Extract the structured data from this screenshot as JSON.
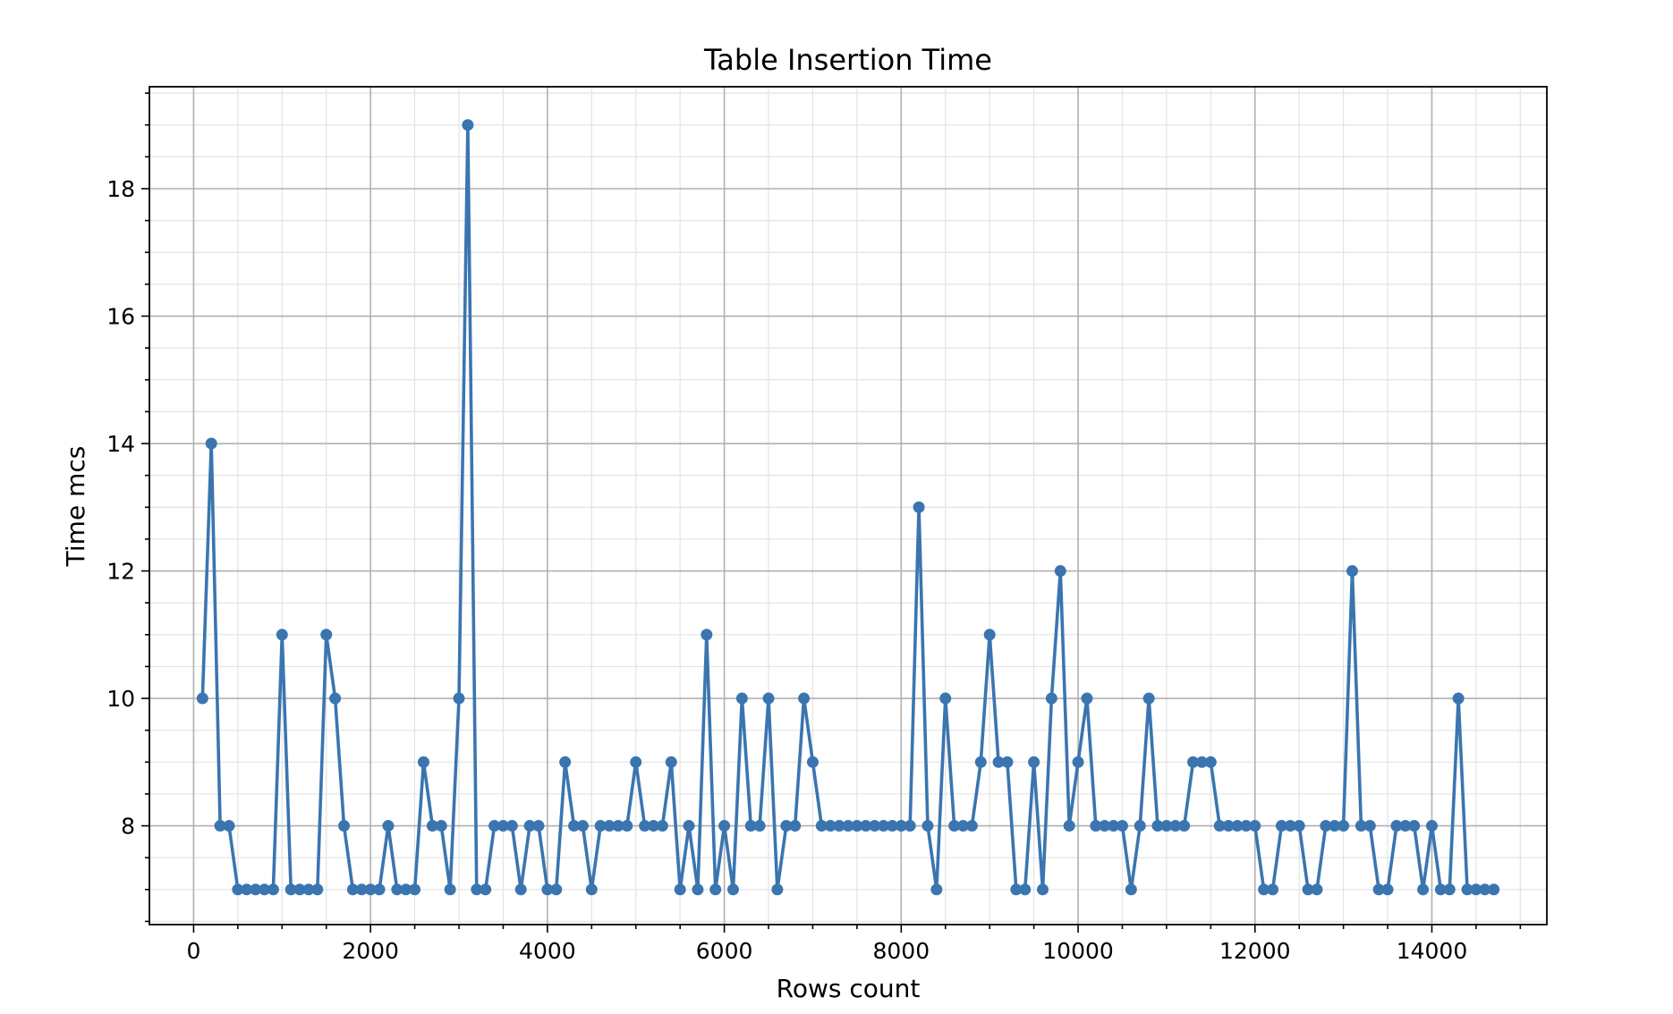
{
  "chart_data": {
    "type": "line",
    "title": "Table Insertion Time",
    "xlabel": "Rows count",
    "ylabel": "Time mcs",
    "xlim": [
      -500,
      15300
    ],
    "ylim": [
      6.45,
      19.6
    ],
    "x_ticks": [
      0,
      2000,
      4000,
      6000,
      8000,
      10000,
      12000,
      14000
    ],
    "y_ticks": [
      8,
      10,
      12,
      14,
      16,
      18
    ],
    "grid": true,
    "minor_grid": true,
    "marker": "circle",
    "color": "#3a75b0",
    "series": [
      {
        "name": "",
        "x": [
          100,
          200,
          300,
          400,
          500,
          600,
          700,
          800,
          900,
          1000,
          1100,
          1200,
          1300,
          1400,
          1500,
          1600,
          1700,
          1800,
          1900,
          2000,
          2100,
          2200,
          2300,
          2400,
          2500,
          2600,
          2700,
          2800,
          2900,
          3000,
          3100,
          3200,
          3300,
          3400,
          3500,
          3600,
          3700,
          3800,
          3900,
          4000,
          4100,
          4200,
          4300,
          4400,
          4500,
          4600,
          4700,
          4800,
          4900,
          5000,
          5100,
          5200,
          5300,
          5400,
          5500,
          5600,
          5700,
          5800,
          5900,
          6000,
          6100,
          6200,
          6300,
          6400,
          6500,
          6600,
          6700,
          6800,
          6900,
          7000,
          7100,
          7200,
          7300,
          7400,
          7500,
          7600,
          7700,
          7800,
          7900,
          8000,
          8100,
          8200,
          8300,
          8400,
          8500,
          8600,
          8700,
          8800,
          8900,
          9000,
          9100,
          9200,
          9300,
          9400,
          9500,
          9600,
          9700,
          9800,
          9900,
          10000,
          10100,
          10200,
          10300,
          10400,
          10500,
          10600,
          10700,
          10800,
          10900,
          11000,
          11100,
          11200,
          11300,
          11400,
          11500,
          11600,
          11700,
          11800,
          11900,
          12000,
          12100,
          12200,
          12300,
          12400,
          12500,
          12600,
          12700,
          12800,
          12900,
          13000,
          13100,
          13200,
          13300,
          13400,
          13500,
          13600,
          13700,
          13800,
          13900,
          14000,
          14100,
          14200,
          14300,
          14400,
          14500,
          14600,
          14700
        ],
        "y": [
          10,
          14,
          8,
          8,
          7,
          7,
          7,
          7,
          7,
          11,
          7,
          7,
          7,
          7,
          11,
          10,
          8,
          7,
          7,
          7,
          7,
          8,
          7,
          7,
          7,
          9,
          8,
          8,
          7,
          10,
          19,
          7,
          7,
          8,
          8,
          8,
          7,
          8,
          8,
          7,
          7,
          9,
          8,
          8,
          7,
          8,
          8,
          8,
          8,
          9,
          8,
          8,
          8,
          9,
          7,
          8,
          7,
          11,
          7,
          8,
          7,
          10,
          8,
          8,
          10,
          7,
          8,
          8,
          10,
          9,
          8,
          8,
          8,
          8,
          8,
          8,
          8,
          8,
          8,
          8,
          8,
          13,
          8,
          7,
          10,
          8,
          8,
          8,
          9,
          11,
          9,
          9,
          7,
          7,
          9,
          7,
          10,
          12,
          8,
          9,
          10,
          8,
          8,
          8,
          8,
          7,
          8,
          10,
          8,
          8,
          8,
          8,
          9,
          9,
          9,
          8,
          8,
          8,
          8,
          8,
          7,
          7,
          8,
          8,
          8,
          7,
          7,
          8,
          8,
          8,
          12,
          8,
          8,
          7,
          7,
          8,
          8,
          8,
          7,
          8,
          7,
          7,
          10,
          7,
          7,
          7,
          7
        ]
      }
    ]
  }
}
